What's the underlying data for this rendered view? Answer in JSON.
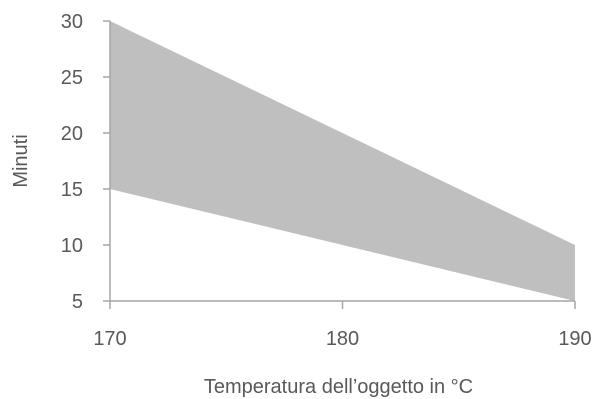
{
  "chart_data": {
    "type": "area",
    "title": "",
    "xlabel": "Temperatura dell’oggetto in °C",
    "ylabel": "Minuti",
    "x": [
      170,
      180,
      190
    ],
    "series": [
      {
        "lower": [
          15,
          10,
          5
        ],
        "upper": [
          30,
          20,
          10
        ]
      }
    ],
    "xlim": [
      170,
      190
    ],
    "ylim": [
      5,
      30
    ],
    "xticks": [
      "170",
      "180",
      "190"
    ],
    "yticks": [
      "5",
      "10",
      "15",
      "20",
      "25",
      "30"
    ],
    "fill_color": "#bfbfbf",
    "grid": false,
    "legend": "none"
  }
}
